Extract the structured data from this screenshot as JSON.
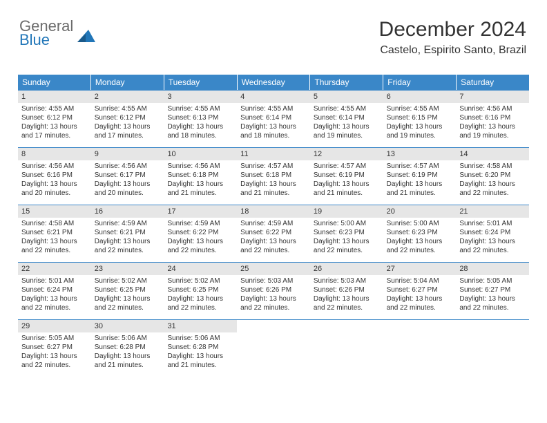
{
  "logo": {
    "text1": "General",
    "text2": "Blue",
    "icon_color": "#2176b8"
  },
  "title": {
    "month": "December 2024",
    "location": "Castelo, Espirito Santo, Brazil"
  },
  "calendar": {
    "type": "table",
    "header_bg": "#3a87c8",
    "header_fg": "#ffffff",
    "divider_color": "#3a87c8",
    "daynum_bg": "#e6e6e6",
    "text_color": "#333333",
    "font_size_header": 12,
    "font_size_day": 10,
    "day_headers": [
      "Sunday",
      "Monday",
      "Tuesday",
      "Wednesday",
      "Thursday",
      "Friday",
      "Saturday"
    ],
    "weeks": [
      [
        {
          "n": "1",
          "sr": "4:55 AM",
          "ss": "6:12 PM",
          "dl": "13 hours and 17 minutes."
        },
        {
          "n": "2",
          "sr": "4:55 AM",
          "ss": "6:12 PM",
          "dl": "13 hours and 17 minutes."
        },
        {
          "n": "3",
          "sr": "4:55 AM",
          "ss": "6:13 PM",
          "dl": "13 hours and 18 minutes."
        },
        {
          "n": "4",
          "sr": "4:55 AM",
          "ss": "6:14 PM",
          "dl": "13 hours and 18 minutes."
        },
        {
          "n": "5",
          "sr": "4:55 AM",
          "ss": "6:14 PM",
          "dl": "13 hours and 19 minutes."
        },
        {
          "n": "6",
          "sr": "4:55 AM",
          "ss": "6:15 PM",
          "dl": "13 hours and 19 minutes."
        },
        {
          "n": "7",
          "sr": "4:56 AM",
          "ss": "6:16 PM",
          "dl": "13 hours and 19 minutes."
        }
      ],
      [
        {
          "n": "8",
          "sr": "4:56 AM",
          "ss": "6:16 PM",
          "dl": "13 hours and 20 minutes."
        },
        {
          "n": "9",
          "sr": "4:56 AM",
          "ss": "6:17 PM",
          "dl": "13 hours and 20 minutes."
        },
        {
          "n": "10",
          "sr": "4:56 AM",
          "ss": "6:18 PM",
          "dl": "13 hours and 21 minutes."
        },
        {
          "n": "11",
          "sr": "4:57 AM",
          "ss": "6:18 PM",
          "dl": "13 hours and 21 minutes."
        },
        {
          "n": "12",
          "sr": "4:57 AM",
          "ss": "6:19 PM",
          "dl": "13 hours and 21 minutes."
        },
        {
          "n": "13",
          "sr": "4:57 AM",
          "ss": "6:19 PM",
          "dl": "13 hours and 21 minutes."
        },
        {
          "n": "14",
          "sr": "4:58 AM",
          "ss": "6:20 PM",
          "dl": "13 hours and 22 minutes."
        }
      ],
      [
        {
          "n": "15",
          "sr": "4:58 AM",
          "ss": "6:21 PM",
          "dl": "13 hours and 22 minutes."
        },
        {
          "n": "16",
          "sr": "4:59 AM",
          "ss": "6:21 PM",
          "dl": "13 hours and 22 minutes."
        },
        {
          "n": "17",
          "sr": "4:59 AM",
          "ss": "6:22 PM",
          "dl": "13 hours and 22 minutes."
        },
        {
          "n": "18",
          "sr": "4:59 AM",
          "ss": "6:22 PM",
          "dl": "13 hours and 22 minutes."
        },
        {
          "n": "19",
          "sr": "5:00 AM",
          "ss": "6:23 PM",
          "dl": "13 hours and 22 minutes."
        },
        {
          "n": "20",
          "sr": "5:00 AM",
          "ss": "6:23 PM",
          "dl": "13 hours and 22 minutes."
        },
        {
          "n": "21",
          "sr": "5:01 AM",
          "ss": "6:24 PM",
          "dl": "13 hours and 22 minutes."
        }
      ],
      [
        {
          "n": "22",
          "sr": "5:01 AM",
          "ss": "6:24 PM",
          "dl": "13 hours and 22 minutes."
        },
        {
          "n": "23",
          "sr": "5:02 AM",
          "ss": "6:25 PM",
          "dl": "13 hours and 22 minutes."
        },
        {
          "n": "24",
          "sr": "5:02 AM",
          "ss": "6:25 PM",
          "dl": "13 hours and 22 minutes."
        },
        {
          "n": "25",
          "sr": "5:03 AM",
          "ss": "6:26 PM",
          "dl": "13 hours and 22 minutes."
        },
        {
          "n": "26",
          "sr": "5:03 AM",
          "ss": "6:26 PM",
          "dl": "13 hours and 22 minutes."
        },
        {
          "n": "27",
          "sr": "5:04 AM",
          "ss": "6:27 PM",
          "dl": "13 hours and 22 minutes."
        },
        {
          "n": "28",
          "sr": "5:05 AM",
          "ss": "6:27 PM",
          "dl": "13 hours and 22 minutes."
        }
      ],
      [
        {
          "n": "29",
          "sr": "5:05 AM",
          "ss": "6:27 PM",
          "dl": "13 hours and 22 minutes."
        },
        {
          "n": "30",
          "sr": "5:06 AM",
          "ss": "6:28 PM",
          "dl": "13 hours and 21 minutes."
        },
        {
          "n": "31",
          "sr": "5:06 AM",
          "ss": "6:28 PM",
          "dl": "13 hours and 21 minutes."
        },
        null,
        null,
        null,
        null
      ]
    ]
  }
}
